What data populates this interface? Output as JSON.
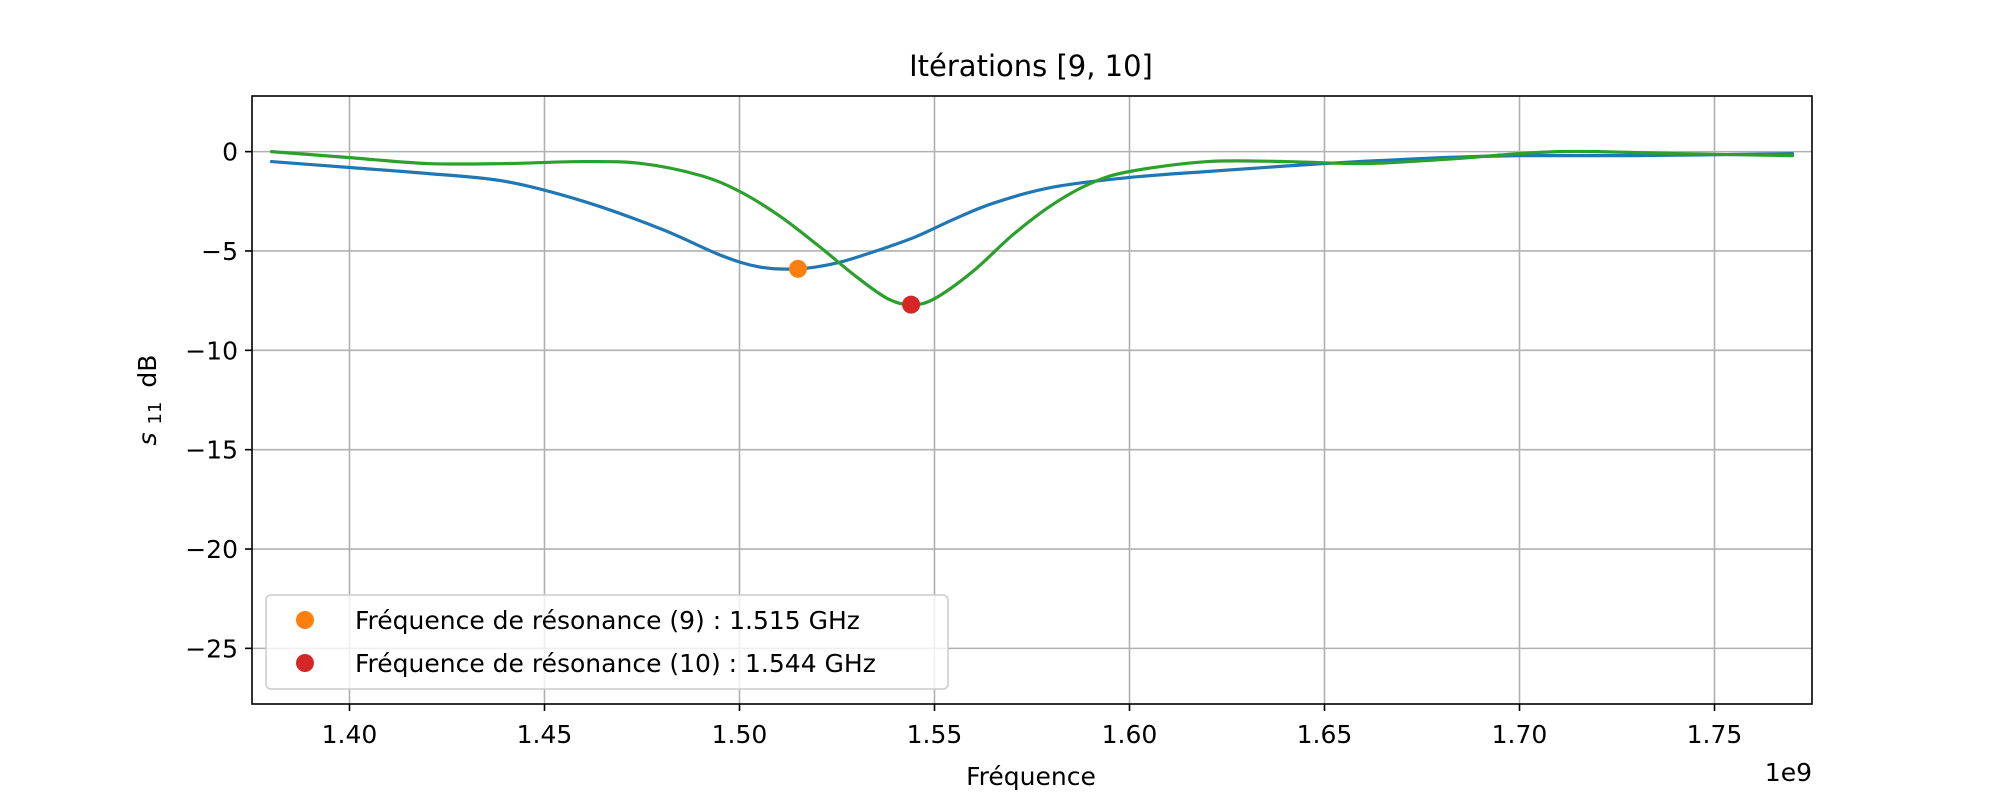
{
  "chart_data": {
    "type": "line",
    "title": "Itérations [9, 10]",
    "xlabel": "Fréquence",
    "ylabel_main": "s",
    "ylabel_sub": "11",
    "ylabel_unit": "dB",
    "x_offset_label": "1e9",
    "xlim": [
      1.375,
      1.775
    ],
    "ylim": [
      -27.8,
      2.8
    ],
    "x_ticks": [
      1.4,
      1.45,
      1.5,
      1.55,
      1.6,
      1.65,
      1.7,
      1.75
    ],
    "x_tick_labels": [
      "1.40",
      "1.45",
      "1.50",
      "1.55",
      "1.60",
      "1.65",
      "1.70",
      "1.75"
    ],
    "y_ticks": [
      0,
      -5,
      -10,
      -15,
      -20,
      -25
    ],
    "y_tick_labels": [
      "0",
      "−5",
      "−10",
      "−15",
      "−20",
      "−25"
    ],
    "grid": true,
    "legend_position": "lower-left",
    "series": [
      {
        "color": "#1f77b4",
        "x": [
          1.38,
          1.4,
          1.42,
          1.44,
          1.46,
          1.48,
          1.495,
          1.505,
          1.515,
          1.525,
          1.535,
          1.545,
          1.555,
          1.565,
          1.58,
          1.6,
          1.62,
          1.65,
          1.68,
          1.7,
          1.73,
          1.77
        ],
        "y": [
          -0.5,
          -0.8,
          -1.1,
          -1.5,
          -2.5,
          -3.9,
          -5.2,
          -5.8,
          -5.9,
          -5.6,
          -5.0,
          -4.3,
          -3.4,
          -2.6,
          -1.8,
          -1.3,
          -1.0,
          -0.6,
          -0.3,
          -0.2,
          -0.2,
          -0.1
        ]
      },
      {
        "color": "#2ca02c",
        "x": [
          1.38,
          1.4,
          1.42,
          1.44,
          1.46,
          1.475,
          1.49,
          1.5,
          1.51,
          1.52,
          1.53,
          1.538,
          1.544,
          1.55,
          1.56,
          1.57,
          1.58,
          1.59,
          1.6,
          1.62,
          1.64,
          1.66,
          1.68,
          1.7,
          1.71,
          1.72,
          1.74,
          1.77
        ],
        "y": [
          0.0,
          -0.3,
          -0.6,
          -0.6,
          -0.5,
          -0.6,
          -1.2,
          -2.0,
          -3.2,
          -4.7,
          -6.3,
          -7.4,
          -7.7,
          -7.4,
          -6.0,
          -4.2,
          -2.7,
          -1.6,
          -1.0,
          -0.5,
          -0.5,
          -0.6,
          -0.4,
          -0.1,
          0.0,
          0.0,
          -0.1,
          -0.2
        ]
      }
    ],
    "markers": [
      {
        "x": 1.515,
        "y": -5.9,
        "color": "#ff7f0e",
        "label": "Fréquence de résonance (9) : 1.515 GHz"
      },
      {
        "x": 1.544,
        "y": -7.7,
        "color": "#d62728",
        "label": "Fréquence de résonance (10) : 1.544 GHz"
      }
    ]
  }
}
